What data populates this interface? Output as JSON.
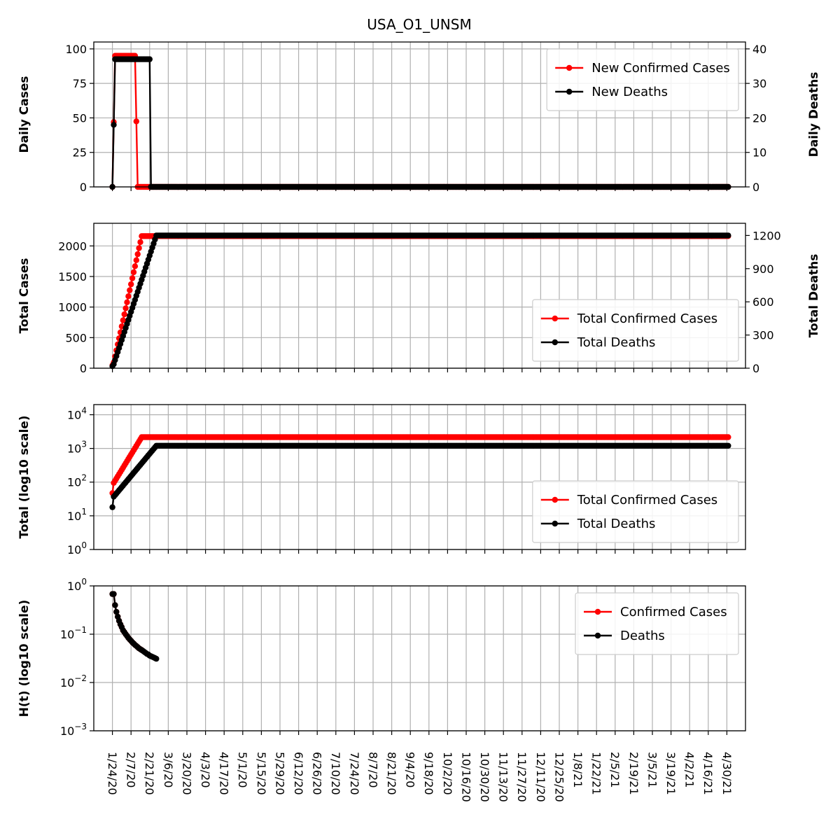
{
  "figure": {
    "title": "USA_O1_UNSM",
    "date_labels": [
      "1/24/20",
      "2/7/20",
      "2/21/20",
      "3/6/20",
      "3/20/20",
      "4/3/20",
      "4/17/20",
      "5/1/20",
      "5/15/20",
      "5/29/20",
      "6/12/20",
      "6/26/20",
      "7/10/20",
      "7/24/20",
      "8/7/20",
      "8/21/20",
      "9/4/20",
      "9/18/20",
      "10/2/20",
      "10/16/20",
      "10/30/20",
      "11/13/20",
      "11/27/20",
      "12/11/20",
      "12/25/20",
      "1/8/21",
      "1/22/21",
      "2/5/21",
      "2/19/21",
      "3/5/21",
      "3/19/21",
      "4/2/21",
      "4/16/21",
      "4/30/21"
    ]
  },
  "colors": {
    "cases": "#ff0000",
    "deaths": "#000000",
    "grid": "#b0b0b0"
  },
  "chart_data": [
    {
      "type": "line",
      "ylabel": "Daily Cases",
      "ylabel_right": "Daily Deaths",
      "ylim": [
        0,
        105
      ],
      "yticks": [
        0,
        25,
        50,
        75,
        100
      ],
      "ytick_labels": [
        "0",
        "25",
        "50",
        "75",
        "100"
      ],
      "ylim_right": [
        0,
        42
      ],
      "yticks_right": [
        0,
        10,
        20,
        30,
        40
      ],
      "ytick_labels_right": [
        "0",
        "10",
        "20",
        "30",
        "40"
      ],
      "legend_position": "top-right",
      "series": [
        {
          "name": "New Confirmed Cases",
          "axis": "left",
          "color": "#ff0000",
          "x": [
            "1/24/20",
            "1/25/20",
            "1/26/20",
            "2/8/20",
            "2/9/20",
            "2/10/20",
            "2/12/20",
            "2/13/20",
            "5/1/21"
          ],
          "y": [
            0,
            47,
            95,
            95,
            95,
            95,
            0,
            0,
            0
          ]
        },
        {
          "name": "New Deaths",
          "axis": "right",
          "color": "#000000",
          "x": [
            "1/24/20",
            "1/25/20",
            "1/26/20",
            "2/20/20",
            "2/21/20",
            "2/22/20",
            "5/1/21"
          ],
          "y": [
            0,
            18,
            37,
            37,
            37,
            0,
            0
          ]
        }
      ]
    },
    {
      "type": "line",
      "ylabel": "Total Cases",
      "ylabel_right": "Total Deaths",
      "ylim": [
        0,
        2370
      ],
      "yticks": [
        0,
        500,
        1000,
        1500,
        2000
      ],
      "ytick_labels": [
        "0",
        "500",
        "1000",
        "1500",
        "2000"
      ],
      "ylim_right": [
        0,
        1310
      ],
      "yticks_right": [
        0,
        300,
        600,
        900,
        1200
      ],
      "ytick_labels_right": [
        "0",
        "300",
        "600",
        "900",
        "1200"
      ],
      "legend_position": "lower-right",
      "series": [
        {
          "name": "Total Confirmed Cases",
          "axis": "left",
          "color": "#ff0000",
          "x": [
            "1/24/20",
            "1/25/20",
            "2/15/20",
            "2/16/20",
            "5/1/21"
          ],
          "y": [
            47,
            95,
            2160,
            2160,
            2160
          ]
        },
        {
          "name": "Total Deaths",
          "axis": "right",
          "color": "#000000",
          "x": [
            "1/24/20",
            "1/25/20",
            "2/26/20",
            "2/27/20",
            "5/1/21"
          ],
          "y": [
            18,
            37,
            1200,
            1200,
            1200
          ]
        }
      ]
    },
    {
      "type": "line",
      "ylabel": "Total (log10 scale)",
      "yscale": "log",
      "ylim": [
        1,
        20000
      ],
      "yticks": [
        1,
        10,
        100,
        1000,
        10000
      ],
      "ytick_base": "10",
      "ytick_exponents": [
        "0",
        "1",
        "2",
        "3",
        "4"
      ],
      "legend_position": "lower-right",
      "series": [
        {
          "name": "Total Confirmed Cases",
          "axis": "left",
          "color": "#ff0000",
          "x": [
            "1/24/20",
            "1/25/20",
            "2/15/20",
            "2/16/20",
            "5/1/21"
          ],
          "y": [
            47,
            95,
            2160,
            2160,
            2160
          ]
        },
        {
          "name": "Total Deaths",
          "axis": "left",
          "color": "#000000",
          "x": [
            "1/24/20",
            "1/25/20",
            "2/26/20",
            "2/27/20",
            "5/1/21"
          ],
          "y": [
            18,
            37,
            1200,
            1200,
            1200
          ]
        }
      ]
    },
    {
      "type": "line",
      "ylabel": "H(t) (log10 scale)",
      "yscale": "log",
      "ylim": [
        0.001,
        1
      ],
      "yticks": [
        0.001,
        0.01,
        0.1,
        1
      ],
      "ytick_base": "10",
      "ytick_exponents": [
        "−3",
        "−2",
        "−1",
        "0"
      ],
      "legend_position": "top-right",
      "series": [
        {
          "name": "Confirmed Cases",
          "axis": "left",
          "color": "#ff0000",
          "x": [
            "1/24/20",
            "1/25/20",
            "1/26/20",
            "1/27/20",
            "1/28/20",
            "1/29/20",
            "1/30/20",
            "1/31/20",
            "2/1/20",
            "2/2/20",
            "2/3/20",
            "2/4/20",
            "2/5/20",
            "2/6/20",
            "2/7/20",
            "2/8/20",
            "2/9/20",
            "2/10/20",
            "2/11/20",
            "2/12/20",
            "2/13/20",
            "2/14/20",
            "2/15/20"
          ],
          "y": [
            0.68,
            0.68,
            0.4,
            0.29,
            0.23,
            0.19,
            0.16,
            0.14,
            0.12,
            0.11,
            0.1,
            0.092,
            0.084,
            0.078,
            0.073,
            0.068,
            0.064,
            0.06,
            0.057,
            0.054,
            0.051,
            0.049,
            0.047
          ]
        },
        {
          "name": "Deaths",
          "axis": "left",
          "color": "#000000",
          "x": [
            "1/24/20",
            "1/25/20",
            "1/26/20",
            "1/27/20",
            "1/28/20",
            "1/29/20",
            "1/30/20",
            "1/31/20",
            "2/1/20",
            "2/2/20",
            "2/3/20",
            "2/4/20",
            "2/5/20",
            "2/6/20",
            "2/7/20",
            "2/8/20",
            "2/9/20",
            "2/10/20",
            "2/11/20",
            "2/12/20",
            "2/13/20",
            "2/14/20",
            "2/15/20",
            "2/16/20",
            "2/17/20",
            "2/18/20",
            "2/19/20",
            "2/20/20",
            "2/21/20",
            "2/22/20",
            "2/23/20",
            "2/24/20",
            "2/25/20",
            "2/26/20"
          ],
          "y": [
            0.68,
            0.68,
            0.4,
            0.29,
            0.23,
            0.19,
            0.16,
            0.14,
            0.12,
            0.11,
            0.1,
            0.092,
            0.084,
            0.078,
            0.073,
            0.068,
            0.064,
            0.06,
            0.057,
            0.054,
            0.051,
            0.049,
            0.047,
            0.045,
            0.043,
            0.041,
            0.039,
            0.038,
            0.036,
            0.035,
            0.034,
            0.033,
            0.032,
            0.031
          ]
        }
      ]
    }
  ]
}
